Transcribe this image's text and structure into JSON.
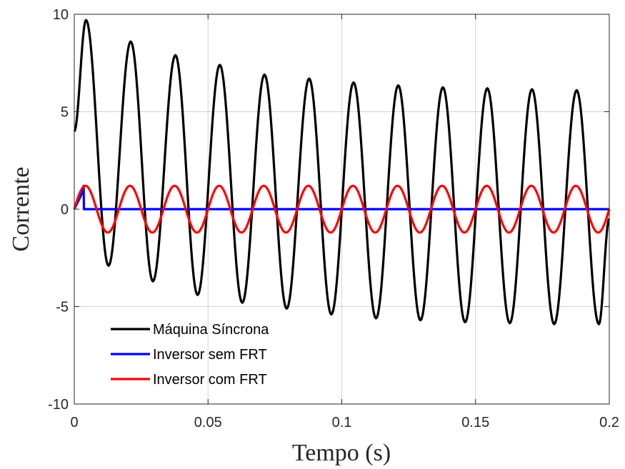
{
  "chart_data": {
    "type": "line",
    "title": "",
    "xlabel": "Tempo (s)",
    "ylabel": "Corrente",
    "xlim": [
      0,
      0.2
    ],
    "ylim": [
      -10,
      10
    ],
    "xticks": [
      0,
      0.05,
      0.1,
      0.15,
      0.2
    ],
    "xtick_labels": [
      "0",
      "0.05",
      "0.1",
      "0.15",
      "0.2"
    ],
    "yticks": [
      -10,
      -5,
      0,
      5,
      10
    ],
    "ytick_labels": [
      "-10",
      "-5",
      "0",
      "5",
      "10"
    ],
    "grid": true,
    "legend_position": "bottom-left",
    "series": [
      {
        "name": "Máquina Síncrona",
        "color": "#000000",
        "points": [
          [
            0.0,
            4.0
          ],
          [
            0.0044,
            9.7
          ],
          [
            0.0128,
            -2.9
          ],
          [
            0.0211,
            8.6
          ],
          [
            0.0294,
            -3.7
          ],
          [
            0.0378,
            7.9
          ],
          [
            0.0461,
            -4.4
          ],
          [
            0.0544,
            7.4
          ],
          [
            0.0628,
            -4.8
          ],
          [
            0.0711,
            6.9
          ],
          [
            0.0794,
            -5.1
          ],
          [
            0.0878,
            6.7
          ],
          [
            0.0961,
            -5.4
          ],
          [
            0.1044,
            6.5
          ],
          [
            0.1128,
            -5.6
          ],
          [
            0.1211,
            6.35
          ],
          [
            0.1294,
            -5.7
          ],
          [
            0.1378,
            6.25
          ],
          [
            0.1461,
            -5.8
          ],
          [
            0.1544,
            6.2
          ],
          [
            0.1628,
            -5.85
          ],
          [
            0.1711,
            6.15
          ],
          [
            0.1794,
            -5.9
          ],
          [
            0.1878,
            6.1
          ],
          [
            0.1961,
            -5.9
          ],
          [
            0.2,
            -0.5
          ]
        ]
      },
      {
        "name": "Inversor sem FRT",
        "color": "#0000ff",
        "points": [
          [
            0.0,
            0.0
          ],
          [
            0.0025,
            0.7
          ],
          [
            0.0035,
            1.2
          ],
          [
            0.0036,
            0.0
          ],
          [
            0.2,
            0.0
          ]
        ]
      },
      {
        "name": "Inversor com FRT",
        "color": "#ff0000",
        "amplitude": 1.2,
        "frequency_hz": 60
      }
    ]
  }
}
